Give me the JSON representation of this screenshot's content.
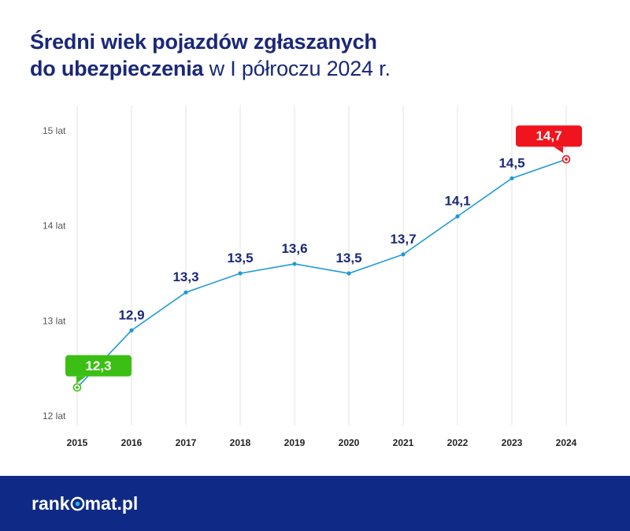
{
  "title": {
    "line1": "Średni wiek pojazdów zgłaszanych",
    "line2_bold": "do ubezpieczenia",
    "line2_light": " w I półroczu 2024 r."
  },
  "colors": {
    "title": "#1a2878",
    "line": "#1e9bd7",
    "label": "#1a2878",
    "first_highlight": "#3bbf14",
    "last_highlight": "#f0141e",
    "grid": "#e3e3e3",
    "footer": "#0f2a86"
  },
  "chart_data": {
    "type": "line",
    "x": [
      "2015",
      "2016",
      "2017",
      "2018",
      "2019",
      "2020",
      "2021",
      "2022",
      "2023",
      "2024"
    ],
    "series": [
      {
        "values": [
          12.3,
          12.9,
          13.3,
          13.5,
          13.6,
          13.5,
          13.7,
          14.1,
          14.5,
          14.7
        ]
      }
    ],
    "data_labels": [
      "12,3",
      "12,9",
      "13,3",
      "13,5",
      "13,6",
      "13,5",
      "13,7",
      "14,1",
      "14,5",
      "14,7"
    ],
    "y_ticks": [
      {
        "value": 12,
        "label": "12 lat"
      },
      {
        "value": 13,
        "label": "13 lat"
      },
      {
        "value": 14,
        "label": "14 lat"
      },
      {
        "value": 15,
        "label": "15 lat"
      }
    ],
    "ylim": [
      12,
      15
    ],
    "grid": "vertical",
    "highlight_first": true,
    "highlight_last": true
  },
  "footer": {
    "logo_before": "rank",
    "logo_after": "mat.pl"
  }
}
